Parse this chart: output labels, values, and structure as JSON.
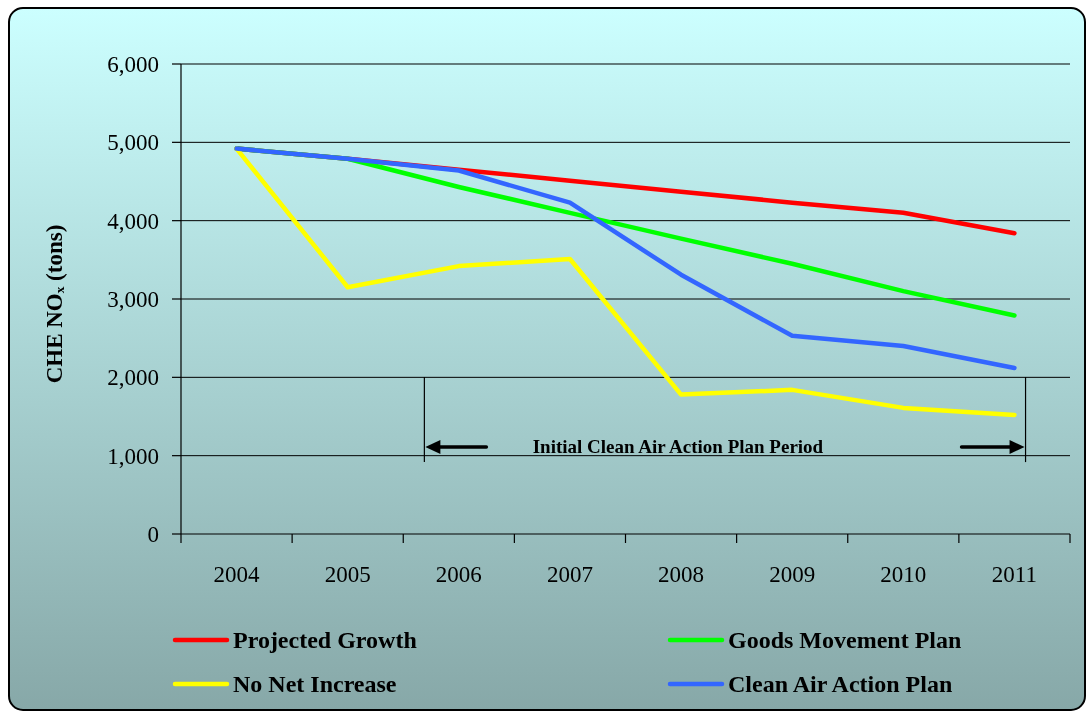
{
  "chart_data": {
    "type": "line",
    "categories": [
      "2004",
      "2005",
      "2006",
      "2007",
      "2008",
      "2009",
      "2010",
      "2011"
    ],
    "series": [
      {
        "name": "Projected Growth",
        "color": "#ff0000",
        "values": [
          4920,
          4790,
          4650,
          4510,
          4370,
          4230,
          4100,
          3840
        ]
      },
      {
        "name": "Goods Movement Plan",
        "color": "#00ff00",
        "values": [
          4920,
          4790,
          4430,
          4100,
          3770,
          3450,
          3100,
          2790
        ]
      },
      {
        "name": "No Net Increase",
        "color": "#ffff00",
        "values": [
          4920,
          3150,
          3420,
          3510,
          1780,
          1840,
          1610,
          1520
        ]
      },
      {
        "name": "Clean Air Action Plan",
        "color": "#3366ff",
        "values": [
          4920,
          4790,
          4640,
          4230,
          3310,
          2530,
          2400,
          2120
        ]
      }
    ],
    "ylabel": "CHE NOₓ (tons)",
    "ylim": [
      0,
      6000
    ],
    "yticks": [
      0,
      {
        "value": 1000,
        "label": "1,000"
      },
      {
        "value": 2000,
        "label": "2,000"
      },
      {
        "value": 3000,
        "label": "3,000"
      },
      {
        "value": 4000,
        "label": "4,000"
      },
      {
        "value": 5000,
        "label": "5,000"
      },
      {
        "value": 6000,
        "label": "6,000"
      }
    ],
    "grid": "y",
    "legend": "bottom",
    "annotations": [
      "Initial Clean Air Action Plan Period"
    ]
  }
}
